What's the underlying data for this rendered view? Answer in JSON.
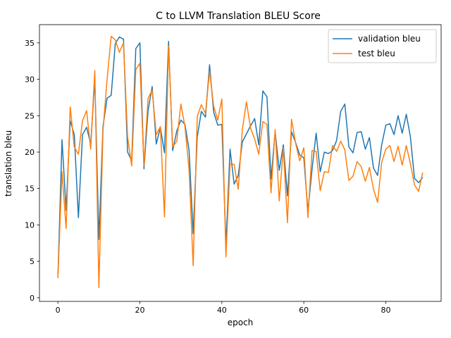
{
  "chart_data": {
    "type": "line",
    "title": "C to LLVM Translation BLEU Score",
    "xlabel": "epoch",
    "ylabel": "translation bleu",
    "xlim": [
      -4.5,
      93.5
    ],
    "ylim": [
      -0.5,
      37.5
    ],
    "xticks": [
      0,
      20,
      40,
      60,
      80
    ],
    "yticks": [
      0,
      5,
      10,
      15,
      20,
      25,
      30,
      35
    ],
    "grid": false,
    "legend": "top-right",
    "series": [
      {
        "name": "validation bleu",
        "color": "#1f77b4",
        "values": [
          2.8,
          21.7,
          12.0,
          24.3,
          22.4,
          11.0,
          22.4,
          23.4,
          21.1,
          30.0,
          8.0,
          23.5,
          27.4,
          27.8,
          34.9,
          35.8,
          35.5,
          20.0,
          18.8,
          34.2,
          35.0,
          17.7,
          25.7,
          29.0,
          21.1,
          23.4,
          19.9,
          35.2,
          20.2,
          22.9,
          24.4,
          23.8,
          20.3,
          8.8,
          22.1,
          25.6,
          24.8,
          32.0,
          25.5,
          23.7,
          23.8,
          7.3,
          20.4,
          15.6,
          16.8,
          21.4,
          22.5,
          23.6,
          24.6,
          21.0,
          28.4,
          27.6,
          16.3,
          22.8,
          17.5,
          21.0,
          14.0,
          22.8,
          21.3,
          19.6,
          19.2,
          11.9,
          17.6,
          22.6,
          17.3,
          20.0,
          19.8,
          20.2,
          21.6,
          25.6,
          26.6,
          20.7,
          19.9,
          22.7,
          22.8,
          20.4,
          22.0,
          17.8,
          16.8,
          21.0,
          23.7,
          23.9,
          22.4,
          25.0,
          22.6,
          25.2,
          22.1,
          16.4,
          15.8,
          16.5
        ]
      },
      {
        "name": "test bleu",
        "color": "#ff7f0e",
        "values": [
          2.7,
          17.3,
          9.5,
          26.2,
          20.7,
          19.7,
          24.3,
          25.7,
          20.4,
          31.2,
          1.4,
          22.9,
          30.0,
          35.9,
          35.4,
          33.7,
          35.0,
          22.1,
          18.1,
          31.3,
          32.2,
          18.1,
          27.4,
          28.5,
          22.4,
          23.5,
          11.1,
          34.6,
          20.7,
          21.5,
          26.6,
          23.5,
          17.6,
          4.4,
          24.9,
          26.5,
          25.3,
          31.1,
          26.3,
          24.4,
          27.3,
          5.6,
          18.4,
          18.3,
          14.9,
          23.1,
          26.9,
          23.3,
          21.8,
          19.7,
          24.2,
          23.8,
          14.4,
          23.1,
          13.3,
          20.6,
          10.3,
          24.5,
          21.2,
          18.8,
          20.6,
          11.0,
          20.2,
          20.1,
          14.7,
          17.3,
          17.2,
          20.9,
          20.1,
          21.5,
          20.3,
          16.1,
          16.7,
          18.7,
          18.0,
          16.0,
          17.9,
          14.9,
          13.1,
          18.6,
          20.4,
          20.9,
          18.7,
          20.8,
          18.2,
          20.9,
          18.4,
          15.5,
          14.6,
          17.2
        ]
      }
    ]
  }
}
